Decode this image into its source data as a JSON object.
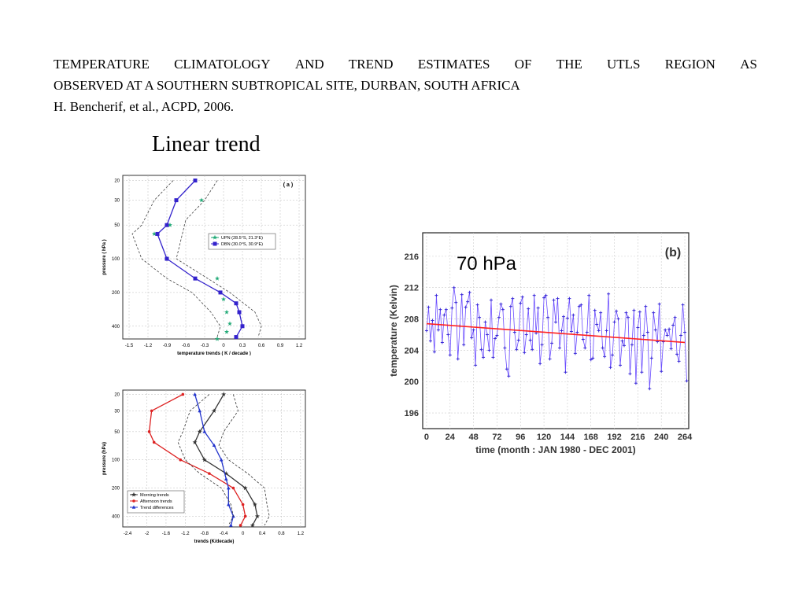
{
  "reference": {
    "line1_words": [
      "TEMPERATURE",
      "CLIMATOLOGY",
      "AND",
      "TREND",
      "ESTIMATES",
      "OF",
      "THE",
      "UTLS",
      "REGION",
      "AS"
    ],
    "line2": "OBSERVED AT A SOUTHERN SUBTROPICAL SITE, DURBAN, SOUTH AFRICA",
    "line3": "H. Bencherif, et al.,  ACPD, 2006."
  },
  "subtitle": "Linear trend",
  "chart_data": [
    {
      "type": "line",
      "panel_label": "( a )",
      "xlabel": "temperature  trends  ( K / decade )",
      "ylabel": "pressure  ( hPa )",
      "xlim": [
        -1.6,
        1.3
      ],
      "y_scale": "log-reversed",
      "x_ticks": [
        "-1.5",
        "-1.2",
        "-0.9",
        "-0.6",
        "-0.3",
        "0",
        "0.3",
        "0.6",
        "0.9",
        "1.2"
      ],
      "y_ticks": [
        "20",
        "30",
        "50",
        "100",
        "200",
        "400"
      ],
      "grid": true,
      "legend": "center-right",
      "series": [
        {
          "name": "UPN (28.5°S, 21.3°E)",
          "color": "#22aa77",
          "marker": "star",
          "points": [
            [
              -0.35,
              30
            ],
            [
              -0.85,
              50
            ],
            [
              -1.1,
              60
            ],
            [
              -0.9,
              100
            ],
            [
              -0.1,
              150
            ],
            [
              0.0,
              230
            ],
            [
              0.05,
              300
            ],
            [
              0.1,
              380
            ],
            [
              0.05,
              450
            ],
            [
              -0.1,
              520
            ]
          ]
        },
        {
          "name": "DBN (30.0°S, 30.9°E)",
          "color": "#3322cc",
          "marker": "square",
          "points": [
            [
              -0.45,
              20
            ],
            [
              -0.75,
              30
            ],
            [
              -0.9,
              50
            ],
            [
              -1.05,
              60
            ],
            [
              -0.9,
              100
            ],
            [
              -0.45,
              150
            ],
            [
              -0.05,
              200
            ],
            [
              0.2,
              250
            ],
            [
              0.25,
              300
            ],
            [
              0.3,
              400
            ],
            [
              0.2,
              500
            ]
          ]
        },
        {
          "name": "",
          "color": "#444444",
          "dash": true,
          "points": [
            [
              -0.1,
              20
            ],
            [
              -0.3,
              30
            ],
            [
              -0.6,
              45
            ],
            [
              -0.75,
              100
            ],
            [
              -0.25,
              150
            ],
            [
              0.1,
              200
            ],
            [
              0.5,
              300
            ],
            [
              0.6,
              400
            ],
            [
              0.55,
              500
            ]
          ]
        },
        {
          "name": "",
          "color": "#444444",
          "dash": true,
          "points": [
            [
              -0.8,
              20
            ],
            [
              -1.1,
              30
            ],
            [
              -1.3,
              50
            ],
            [
              -1.45,
              60
            ],
            [
              -1.3,
              100
            ],
            [
              -0.9,
              150
            ],
            [
              -0.5,
              200
            ],
            [
              -0.2,
              300
            ],
            [
              -0.05,
              400
            ],
            [
              -0.1,
              500
            ]
          ]
        }
      ]
    },
    {
      "type": "line",
      "xlabel": "trends  (K/decade)",
      "ylabel": "pressure (hPa)",
      "xlim": [
        -2.5,
        1.3
      ],
      "y_scale": "log-reversed",
      "x_ticks": [
        "-2.4",
        "-2",
        "-1.6",
        "-1.2",
        "-0.8",
        "-0.4",
        "0",
        "0.4",
        "0.8",
        "1.2"
      ],
      "y_ticks": [
        "20",
        "30",
        "50",
        "100",
        "200",
        "400"
      ],
      "grid": true,
      "legend": "bottom-left",
      "series": [
        {
          "name": "Morning trends",
          "color": "#333333",
          "marker": "star",
          "points": [
            [
              -0.4,
              20
            ],
            [
              -0.6,
              30
            ],
            [
              -0.9,
              50
            ],
            [
              -1.0,
              65
            ],
            [
              -0.8,
              100
            ],
            [
              -0.35,
              140
            ],
            [
              0.05,
              200
            ],
            [
              0.25,
              300
            ],
            [
              0.3,
              400
            ],
            [
              0.2,
              500
            ]
          ]
        },
        {
          "name": "Afternoon trends",
          "color": "#dd2222",
          "marker": "dot",
          "points": [
            [
              -1.25,
              20
            ],
            [
              -1.9,
              30
            ],
            [
              -1.95,
              50
            ],
            [
              -1.85,
              65
            ],
            [
              -1.3,
              100
            ],
            [
              -0.7,
              140
            ],
            [
              -0.2,
              200
            ],
            [
              0.0,
              300
            ],
            [
              0.05,
              400
            ],
            [
              -0.05,
              500
            ]
          ]
        },
        {
          "name": "Trend differences",
          "color": "#2233cc",
          "marker": "triangle",
          "points": [
            [
              -1.0,
              20
            ],
            [
              -0.9,
              30
            ],
            [
              -0.8,
              50
            ],
            [
              -0.6,
              70
            ],
            [
              -0.45,
              100
            ],
            [
              -0.35,
              160
            ],
            [
              -0.3,
              200
            ],
            [
              -0.3,
              300
            ],
            [
              -0.2,
              400
            ],
            [
              -0.25,
              500
            ]
          ]
        },
        {
          "name": "",
          "color": "#333333",
          "dash": true,
          "points": [
            [
              -0.2,
              20
            ],
            [
              -0.1,
              30
            ],
            [
              -0.4,
              50
            ],
            [
              -0.5,
              70
            ],
            [
              -0.3,
              100
            ],
            [
              0.1,
              140
            ],
            [
              0.45,
              200
            ],
            [
              0.5,
              300
            ],
            [
              0.55,
              400
            ],
            [
              0.45,
              500
            ]
          ]
        },
        {
          "name": "",
          "color": "#333333",
          "dash": true,
          "points": [
            [
              -0.7,
              20
            ],
            [
              -1.1,
              30
            ],
            [
              -1.25,
              50
            ],
            [
              -1.35,
              65
            ],
            [
              -1.2,
              100
            ],
            [
              -0.9,
              140
            ],
            [
              -0.45,
              200
            ],
            [
              -0.25,
              300
            ],
            [
              -0.2,
              400
            ],
            [
              -0.3,
              500
            ]
          ]
        }
      ]
    },
    {
      "type": "line",
      "panel_label": "(b)",
      "annotation": "70 hPa",
      "xlabel": "time (month : JAN 1980 - DEC 2001)",
      "ylabel": "temperature (Kelvin)",
      "xlim": [
        -4,
        268
      ],
      "ylim": [
        194,
        219
      ],
      "x_ticks": [
        0,
        24,
        48,
        72,
        96,
        120,
        144,
        168,
        192,
        216,
        240,
        264
      ],
      "y_ticks": [
        196,
        200,
        204,
        208,
        212,
        216
      ],
      "grid": true,
      "series": [
        {
          "name": "",
          "color": "#6a4cff",
          "marker": "plus",
          "x_start": 0,
          "x_step": 2,
          "values": [
            206.5,
            209.5,
            205.2,
            207.8,
            203.8,
            211.0,
            206.6,
            209.2,
            205.0,
            208.5,
            209.2,
            206.0,
            203.4,
            209.4,
            212.0,
            210.1,
            202.9,
            207.1,
            211.1,
            204.7,
            209.5,
            210.2,
            211.4,
            205.6,
            206.6,
            202.1,
            209.8,
            208.2,
            204.1,
            203.1,
            207.6,
            206.0,
            204.0,
            210.4,
            203.1,
            205.5,
            205.9,
            208.2,
            209.9,
            209.2,
            204.3,
            201.6,
            200.7,
            209.6,
            210.6,
            206.3,
            204.1,
            205.3,
            210.0,
            210.8,
            203.7,
            206.0,
            209.3,
            205.3,
            204.1,
            211.0,
            206.2,
            209.4,
            202.3,
            204.7,
            210.7,
            211.0,
            208.2,
            202.9,
            204.9,
            210.4,
            207.6,
            210.6,
            204.3,
            206.5,
            208.3,
            201.2,
            208.1,
            210.6,
            206.4,
            208.5,
            203.6,
            206.3,
            209.6,
            209.8,
            205.4,
            204.3,
            206.3,
            211.0,
            202.8,
            203.0,
            209.1,
            207.3,
            206.5,
            208.8,
            204.3,
            203.2,
            206.5,
            211.2,
            201.8,
            203.4,
            207.6,
            209.0,
            208.0,
            202.1,
            205.2,
            204.6,
            208.8,
            208.2,
            201.0,
            204.7,
            209.1,
            199.8,
            206.9,
            208.9,
            201.2,
            205.9,
            209.6,
            206.3,
            199.1,
            203.0,
            208.8,
            206.6,
            205.1,
            209.9,
            201.3,
            205.1,
            206.6,
            205.9,
            206.7,
            204.2,
            207.2,
            208.2,
            203.5,
            202.6,
            205.9,
            209.8,
            206.3,
            200.1
          ]
        },
        {
          "name": "",
          "color": "#ff2222",
          "fit": true,
          "x": [
            0,
            264
          ],
          "values": [
            207.4,
            205.0
          ]
        }
      ]
    }
  ]
}
